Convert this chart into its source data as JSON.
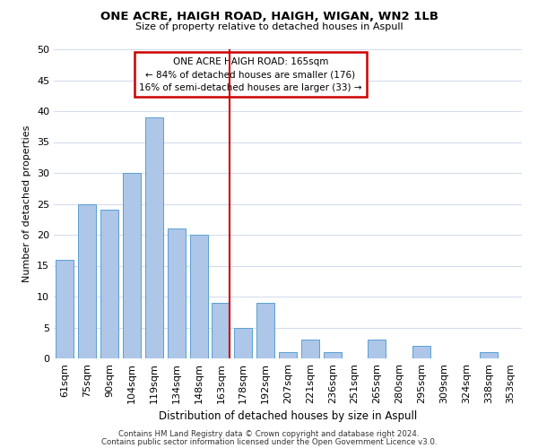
{
  "title": "ONE ACRE, HAIGH ROAD, HAIGH, WIGAN, WN2 1LB",
  "subtitle": "Size of property relative to detached houses in Aspull",
  "xlabel": "Distribution of detached houses by size in Aspull",
  "ylabel": "Number of detached properties",
  "bar_labels": [
    "61sqm",
    "75sqm",
    "90sqm",
    "104sqm",
    "119sqm",
    "134sqm",
    "148sqm",
    "163sqm",
    "178sqm",
    "192sqm",
    "207sqm",
    "221sqm",
    "236sqm",
    "251sqm",
    "265sqm",
    "280sqm",
    "295sqm",
    "309sqm",
    "324sqm",
    "338sqm",
    "353sqm"
  ],
  "bar_values": [
    16,
    25,
    24,
    30,
    39,
    21,
    20,
    9,
    5,
    9,
    1,
    3,
    1,
    0,
    3,
    0,
    2,
    0,
    0,
    1,
    0
  ],
  "bar_color": "#aec6e8",
  "bar_edge_color": "#5a9fd4",
  "vline_color": "#cc0000",
  "ylim": [
    0,
    50
  ],
  "annotation_title": "ONE ACRE HAIGH ROAD: 165sqm",
  "annotation_line1": "← 84% of detached houses are smaller (176)",
  "annotation_line2": "16% of semi-detached houses are larger (33) →",
  "annotation_box_color": "#ffffff",
  "annotation_box_edge": "#cc0000",
  "footer1": "Contains HM Land Registry data © Crown copyright and database right 2024.",
  "footer2": "Contains public sector information licensed under the Open Government Licence v3.0.",
  "background_color": "#ffffff",
  "grid_color": "#d4dded"
}
